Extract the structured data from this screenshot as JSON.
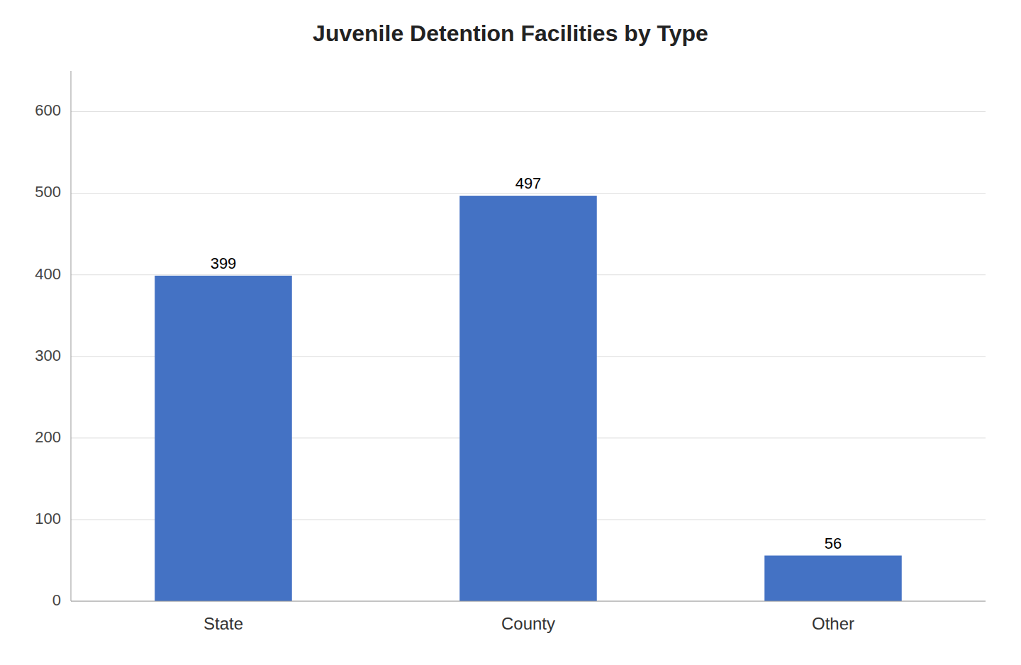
{
  "chart_data": {
    "type": "bar",
    "title": "Juvenile Detention Facilities by Type",
    "categories": [
      "State",
      "County",
      "Other"
    ],
    "values": [
      399,
      497,
      56
    ],
    "color": "#4472C4",
    "ylim": [
      0,
      650
    ],
    "yticks": [
      0,
      100,
      200,
      300,
      400,
      500,
      600
    ],
    "grid": true,
    "data_labels": true
  }
}
